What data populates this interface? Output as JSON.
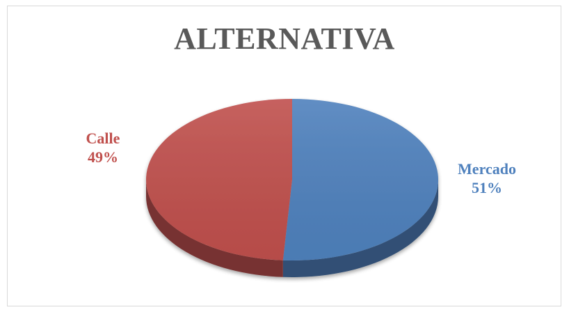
{
  "chart_data": {
    "type": "pie",
    "title": "ALTERNATIVA",
    "three_d": true,
    "legend": "none",
    "slices": [
      {
        "label": "Mercado",
        "value": 51,
        "percent_label": "51%",
        "color": "#4f81bd"
      },
      {
        "label": "Calle",
        "value": 49,
        "percent_label": "49%",
        "color": "#c0504d"
      }
    ]
  }
}
